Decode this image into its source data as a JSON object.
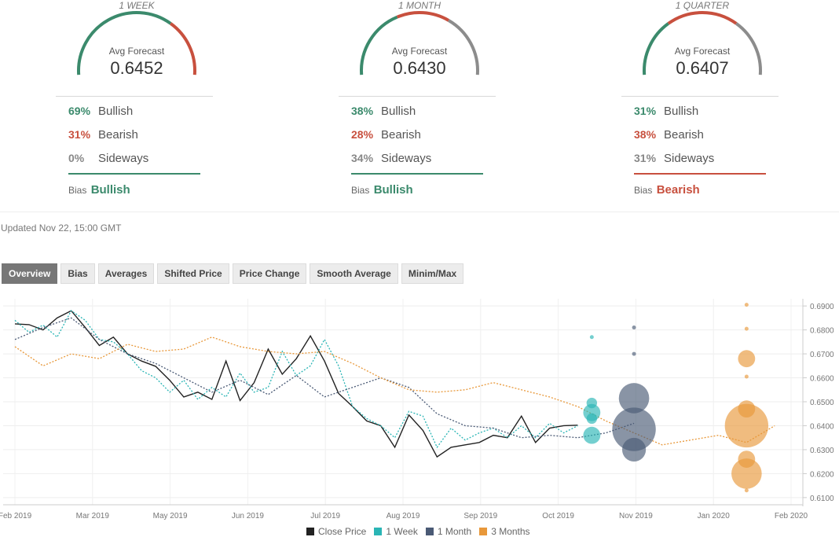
{
  "panels": [
    {
      "period": "1 WEEK",
      "avg_label": "Avg Forecast",
      "avg_value": "0.6452",
      "bullish_pct": "69%",
      "bullish_label": "Bullish",
      "bearish_pct": "31%",
      "bearish_label": "Bearish",
      "sideways_pct": "0%",
      "sideways_label": "Sideways",
      "bias_label": "Bias",
      "bias_value": "Bullish",
      "bias_color": "#3b8a6c",
      "gauge": {
        "bullish": 0.69,
        "bearish": 0.31,
        "sideways": 0.0
      }
    },
    {
      "period": "1 MONTH",
      "avg_label": "Avg Forecast",
      "avg_value": "0.6430",
      "bullish_pct": "38%",
      "bullish_label": "Bullish",
      "bearish_pct": "28%",
      "bearish_label": "Bearish",
      "sideways_pct": "34%",
      "sideways_label": "Sideways",
      "bias_label": "Bias",
      "bias_value": "Bullish",
      "bias_color": "#3b8a6c",
      "gauge": {
        "bullish": 0.38,
        "bearish": 0.28,
        "sideways": 0.34
      }
    },
    {
      "period": "1 QUARTER",
      "avg_label": "Avg Forecast",
      "avg_value": "0.6407",
      "bullish_pct": "31%",
      "bullish_label": "Bullish",
      "bearish_pct": "38%",
      "bearish_label": "Bearish",
      "sideways_pct": "31%",
      "sideways_label": "Sideways",
      "bias_label": "Bias",
      "bias_value": "Bearish",
      "bias_color": "#c8503e",
      "gauge": {
        "bullish": 0.31,
        "bearish": 0.38,
        "sideways": 0.31
      }
    }
  ],
  "colors": {
    "bullish": "#3b8a6c",
    "bearish": "#c8503e",
    "sideways": "#8c8c8c"
  },
  "updated": "Updated Nov 22, 15:00 GMT",
  "tabs": [
    "Overview",
    "Bias",
    "Averages",
    "Shifted Price",
    "Price Change",
    "Smooth Average",
    "Minim/Max"
  ],
  "active_tab": "Overview",
  "chart_data": {
    "type": "line",
    "x_ticks": [
      "Feb 2019",
      "Mar 2019",
      "May 2019",
      "Jun 2019",
      "Jul 2019",
      "Aug 2019",
      "Sep 2019",
      "Oct 2019",
      "Nov 2019",
      "Jan 2020",
      "Feb 2020"
    ],
    "y_ticks": [
      "0.6900",
      "0.6800",
      "0.6700",
      "0.6600",
      "0.6500",
      "0.6400",
      "0.6300",
      "0.6200",
      "0.6100"
    ],
    "ylim": [
      0.607,
      0.693
    ],
    "grid": true,
    "legend_position": "bottom",
    "series": [
      {
        "name": "Close Price",
        "color": "#222222",
        "style": "solid",
        "x": [
          0,
          1,
          2,
          3,
          4,
          5,
          6,
          7,
          8,
          9,
          10,
          11,
          12,
          13,
          14,
          15,
          16,
          17,
          18,
          19,
          20,
          21,
          22,
          23,
          24,
          25,
          26,
          27,
          28,
          29,
          30,
          31,
          32,
          33,
          34,
          35,
          36,
          37,
          38,
          39,
          40
        ],
        "y": [
          0.6825,
          0.6822,
          0.68,
          0.685,
          0.688,
          0.681,
          0.6735,
          0.677,
          0.67,
          0.667,
          0.6648,
          0.659,
          0.652,
          0.654,
          0.651,
          0.667,
          0.6505,
          0.658,
          0.672,
          0.6615,
          0.668,
          0.6775,
          0.667,
          0.6535,
          0.648,
          0.642,
          0.64,
          0.631,
          0.6445,
          0.638,
          0.627,
          0.631,
          0.632,
          0.633,
          0.636,
          0.635,
          0.644,
          0.633,
          0.639,
          0.64,
          0.6402
        ]
      },
      {
        "name": "1 Week",
        "color": "#2ab5b5",
        "style": "dotted",
        "x": [
          0,
          1,
          2,
          3,
          4,
          5,
          6,
          7,
          8,
          9,
          10,
          11,
          12,
          13,
          14,
          15,
          16,
          17,
          18,
          19,
          20,
          21,
          22,
          23,
          24,
          25,
          26,
          27,
          28,
          29,
          30,
          31,
          32,
          33,
          34,
          35,
          36,
          37,
          38,
          39,
          40
        ],
        "y": [
          0.684,
          0.679,
          0.682,
          0.677,
          0.688,
          0.684,
          0.676,
          0.675,
          0.67,
          0.663,
          0.66,
          0.654,
          0.659,
          0.651,
          0.656,
          0.652,
          0.662,
          0.654,
          0.656,
          0.671,
          0.661,
          0.665,
          0.676,
          0.665,
          0.648,
          0.643,
          0.64,
          0.635,
          0.646,
          0.644,
          0.631,
          0.639,
          0.634,
          0.637,
          0.639,
          0.635,
          0.64,
          0.635,
          0.641,
          0.637,
          0.64
        ]
      },
      {
        "name": "1 Month",
        "color": "#4a5a75",
        "style": "dotted",
        "x": [
          0,
          2,
          4,
          6,
          8,
          10,
          12,
          14,
          16,
          18,
          20,
          22,
          24,
          26,
          28,
          30,
          32,
          34,
          36,
          38,
          40,
          42,
          44
        ],
        "y": [
          0.676,
          0.681,
          0.685,
          0.676,
          0.67,
          0.666,
          0.66,
          0.654,
          0.659,
          0.653,
          0.661,
          0.652,
          0.656,
          0.66,
          0.656,
          0.645,
          0.64,
          0.639,
          0.635,
          0.636,
          0.635,
          0.637,
          0.641
        ]
      },
      {
        "name": "3 Months",
        "color": "#e8983a",
        "style": "dotted",
        "x": [
          0,
          2,
          4,
          6,
          8,
          10,
          12,
          14,
          16,
          18,
          20,
          22,
          24,
          26,
          28,
          30,
          32,
          34,
          36,
          38,
          40,
          42,
          44,
          46,
          48,
          50,
          52,
          54
        ],
        "y": [
          0.673,
          0.665,
          0.67,
          0.668,
          0.674,
          0.671,
          0.672,
          0.677,
          0.673,
          0.671,
          0.67,
          0.671,
          0.666,
          0.66,
          0.655,
          0.654,
          0.655,
          0.658,
          0.655,
          0.652,
          0.648,
          0.642,
          0.637,
          0.632,
          0.634,
          0.636,
          0.633,
          0.64
        ]
      }
    ],
    "forecast_bubbles": [
      {
        "series": "1 Week",
        "x": 41,
        "points": [
          {
            "y": 0.677,
            "size": 1
          },
          {
            "y": 0.6495,
            "size": 2
          },
          {
            "y": 0.6455,
            "size": 3
          },
          {
            "y": 0.643,
            "size": 2
          },
          {
            "y": 0.636,
            "size": 3
          }
        ]
      },
      {
        "series": "1 Month",
        "x": 44,
        "points": [
          {
            "y": 0.681,
            "size": 1
          },
          {
            "y": 0.67,
            "size": 1
          },
          {
            "y": 0.6515,
            "size": 5
          },
          {
            "y": 0.6385,
            "size": 7
          },
          {
            "y": 0.63,
            "size": 4
          }
        ]
      },
      {
        "series": "3 Months",
        "x": 52,
        "points": [
          {
            "y": 0.6905,
            "size": 1
          },
          {
            "y": 0.6805,
            "size": 1
          },
          {
            "y": 0.668,
            "size": 3
          },
          {
            "y": 0.6605,
            "size": 1
          },
          {
            "y": 0.647,
            "size": 3
          },
          {
            "y": 0.64,
            "size": 7
          },
          {
            "y": 0.626,
            "size": 3
          },
          {
            "y": 0.62,
            "size": 5
          },
          {
            "y": 0.613,
            "size": 1
          }
        ]
      }
    ]
  },
  "legend": [
    {
      "label": "Close Price",
      "color": "#222222"
    },
    {
      "label": "1 Week",
      "color": "#2ab5b5"
    },
    {
      "label": "1 Month",
      "color": "#4a5a75"
    },
    {
      "label": "3 Months",
      "color": "#e8983a"
    }
  ]
}
